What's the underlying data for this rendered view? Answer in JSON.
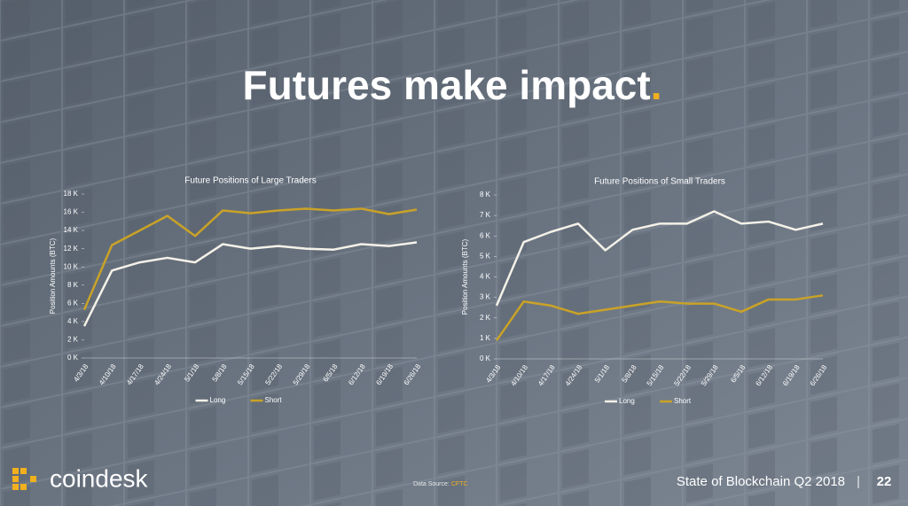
{
  "title": "Futures make impact",
  "title_dot": ".",
  "chart_data": [
    {
      "type": "line",
      "title": "Future Positions of Large Traders",
      "y_label": "Position Amounts (BTC)",
      "categories": [
        "4/3/18",
        "4/10/18",
        "4/17/18",
        "4/24/18",
        "5/1/18",
        "5/8/18",
        "5/15/18",
        "5/22/18",
        "5/29/18",
        "6/5/18",
        "6/12/18",
        "6/19/18",
        "6/26/18"
      ],
      "series": [
        {
          "name": "Long",
          "color": "#f4f1e8",
          "values": [
            3500,
            9600,
            10500,
            11000,
            10500,
            12500,
            12000,
            12300,
            12000,
            11900,
            12500,
            12300,
            12700
          ]
        },
        {
          "name": "Short",
          "color": "#c9a227",
          "values": [
            5300,
            12400,
            14000,
            15600,
            13400,
            16200,
            15900,
            16200,
            16400,
            16200,
            16400,
            15800,
            16300
          ]
        }
      ],
      "ylim": [
        0,
        18000
      ],
      "yticks": [
        {
          "value": 0,
          "label": "0 K"
        },
        {
          "value": 2000,
          "label": "2 K"
        },
        {
          "value": 4000,
          "label": "4 K"
        },
        {
          "value": 6000,
          "label": "6 K"
        },
        {
          "value": 8000,
          "label": "8 K"
        },
        {
          "value": 10000,
          "label": "10 K"
        },
        {
          "value": 12000,
          "label": "12 K"
        },
        {
          "value": 14000,
          "label": "14 K"
        },
        {
          "value": 16000,
          "label": "16 K"
        },
        {
          "value": 18000,
          "label": "18 K"
        }
      ],
      "legend": "bottom"
    },
    {
      "type": "line",
      "title": "Future Positions of Small Traders",
      "y_label": "Position Amounts (BTC)",
      "categories": [
        "4/3/18",
        "4/10/18",
        "4/17/18",
        "4/24/18",
        "5/1/18",
        "5/8/18",
        "5/15/18",
        "5/22/18",
        "5/29/18",
        "6/5/18",
        "6/12/18",
        "6/19/18",
        "6/26/18"
      ],
      "series": [
        {
          "name": "Long",
          "color": "#f4f1e8",
          "values": [
            2600,
            5700,
            6200,
            6600,
            5300,
            6300,
            6600,
            6600,
            7200,
            6600,
            6700,
            6300,
            6600
          ]
        },
        {
          "name": "Short",
          "color": "#c9a227",
          "values": [
            900,
            2800,
            2600,
            2200,
            2400,
            2600,
            2800,
            2700,
            2700,
            2300,
            2900,
            2900,
            3100
          ]
        }
      ],
      "ylim": [
        0,
        8000
      ],
      "yticks": [
        {
          "value": 0,
          "label": "0 K"
        },
        {
          "value": 1000,
          "label": "1 K"
        },
        {
          "value": 2000,
          "label": "2 K"
        },
        {
          "value": 3000,
          "label": "3 K"
        },
        {
          "value": 4000,
          "label": "4 K"
        },
        {
          "value": 5000,
          "label": "5 K"
        },
        {
          "value": 6000,
          "label": "6 K"
        },
        {
          "value": 7000,
          "label": "7 K"
        },
        {
          "value": 8000,
          "label": "8 K"
        }
      ],
      "legend": "bottom"
    }
  ],
  "footer": {
    "logo": "coindesk",
    "source_label": "Data Source:",
    "source": "CFTC",
    "report": "State of Blockchain Q2 2018",
    "page": "22"
  }
}
